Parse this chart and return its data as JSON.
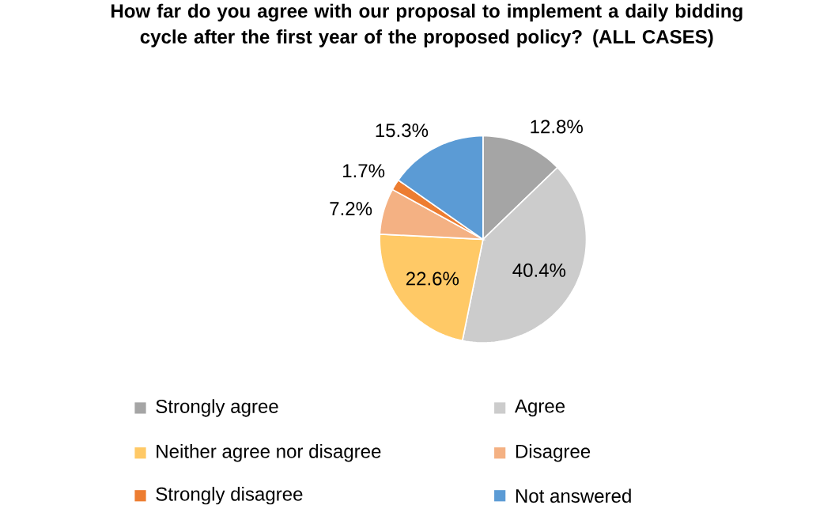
{
  "chart_data": {
    "type": "pie",
    "title": "How far do you agree with our proposal to implement a daily bidding cycle after the first year of the proposed policy? **(ALL CASES)**",
    "categories": [
      "Strongly agree",
      "Agree",
      "Neither agree nor disagree",
      "Disagree",
      "Strongly disagree",
      "Not answered"
    ],
    "values": [
      12.8,
      40.4,
      22.6,
      7.2,
      1.7,
      15.3
    ],
    "value_labels": [
      "12.8%",
      "40.4%",
      "22.6%",
      "7.2%",
      "1.7%",
      "15.3%"
    ],
    "colors": [
      "#a5a5a5",
      "#cccccc",
      "#ffc966",
      "#f4b183",
      "#ed7d31",
      "#5b9bd5"
    ],
    "legend": "bottom"
  }
}
